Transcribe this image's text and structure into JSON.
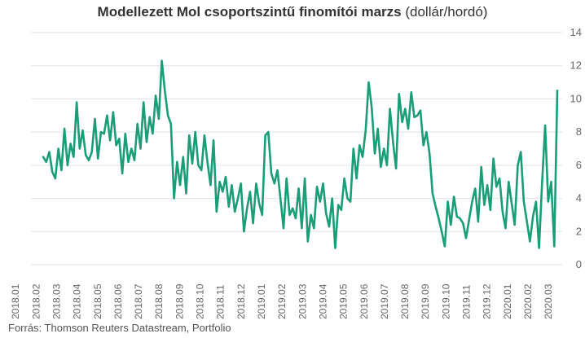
{
  "title": {
    "main": "Modellezett Mol csoportszintű finomítói marzs",
    "unit": "(dollár/hordó)"
  },
  "source": "Forrás: Thomson Reuters Datastream, Portfolio",
  "colors": {
    "line": "#1a9e78",
    "grid": "#e3e3e3",
    "text": "#666666"
  },
  "chart_data": {
    "type": "line",
    "title": "Modellezett Mol csoportszintű finomítói marzs (dollár/hordó)",
    "ylim": [
      0,
      14
    ],
    "yticks": [
      0,
      2,
      4,
      6,
      8,
      10,
      12,
      14
    ],
    "grid": "horizontal",
    "y_axis_side": "right",
    "x_tick_labels": [
      "2018.01",
      "2018.02",
      "2018.03",
      "2018.04",
      "2018.05",
      "2018.06",
      "2018.07",
      "2018.08",
      "2018.09",
      "2018.10",
      "2018.11",
      "2018.12",
      "2019.01",
      "2019.02",
      "2019.03",
      "2019.04",
      "2019.05",
      "2019.06",
      "2019.07",
      "2019.08",
      "2019.09",
      "2019.10",
      "2019.11",
      "2019.12",
      "2020.01",
      "2020.02",
      "2020.03"
    ],
    "series": [
      {
        "values": [
          6.5,
          6.2,
          6.8,
          5.6,
          5.2,
          7.0,
          5.7,
          8.2,
          6.0,
          7.3,
          6.5,
          9.8,
          7.0,
          8.1,
          6.6,
          6.3,
          6.8,
          8.8,
          6.4,
          8.0,
          7.9,
          9.0,
          7.5,
          9.2,
          7.2,
          7.6,
          5.5,
          7.9,
          6.2,
          7.0,
          6.3,
          8.5,
          7.0,
          9.8,
          7.4,
          8.9,
          7.9,
          10.2,
          8.8,
          12.3,
          10.5,
          9.0,
          8.5,
          4.0,
          6.2,
          4.8,
          6.5,
          4.3,
          7.8,
          6.1,
          8.0,
          6.0,
          5.7,
          7.8,
          6.2,
          4.8,
          7.5,
          3.2,
          5.0,
          4.4,
          5.3,
          3.5,
          4.8,
          3.2,
          4.0,
          4.9,
          2.0,
          3.4,
          4.4,
          2.5,
          4.9,
          3.7,
          3.0,
          7.8,
          8.0,
          5.5,
          4.9,
          5.7,
          4.0,
          2.2,
          5.2,
          3.0,
          3.4,
          2.8,
          4.6,
          2.2,
          5.2,
          1.4,
          3.0,
          2.2,
          4.7,
          3.8,
          4.9,
          3.1,
          2.3,
          4.0,
          1.0,
          3.6,
          3.3,
          5.2,
          4.0,
          3.8,
          7.0,
          5.2,
          7.2,
          6.5,
          8.1,
          11.0,
          9.5,
          6.7,
          8.2,
          5.9,
          7.0,
          6.0,
          9.4,
          7.4,
          5.8,
          10.3,
          8.6,
          9.4,
          8.2,
          10.4,
          8.9,
          9.0,
          9.3,
          7.2,
          8.0,
          6.7,
          4.3,
          3.5,
          2.8,
          2.0,
          1.1,
          3.8,
          2.4,
          4.1,
          2.9,
          2.8,
          2.5,
          1.6,
          2.7,
          3.8,
          4.6,
          2.6,
          5.9,
          3.6,
          4.8,
          3.3,
          6.4,
          4.7,
          5.2,
          3.2,
          2.2,
          5.0,
          3.7,
          2.4,
          6.0,
          6.8,
          3.8,
          2.6,
          1.4,
          2.9,
          3.8,
          1.0,
          4.9,
          8.4,
          3.8,
          5.0,
          1.1,
          10.5
        ]
      }
    ]
  }
}
